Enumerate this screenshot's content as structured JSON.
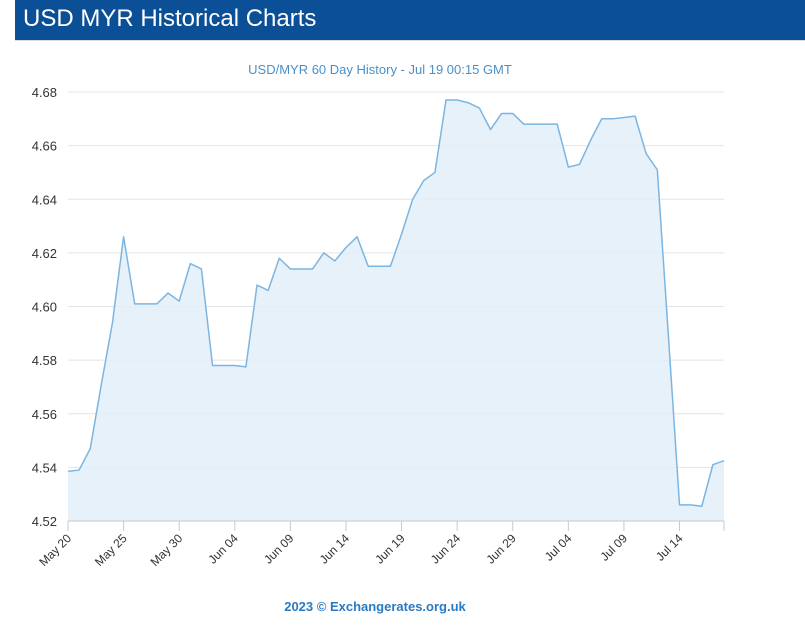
{
  "header": {
    "title": "USD MYR Historical Charts"
  },
  "chart_data": {
    "type": "area",
    "title": "USD/MYR 60 Day History - Jul 19 00:15 GMT",
    "xlabel": "",
    "ylabel": "",
    "ylim": [
      4.52,
      4.68
    ],
    "yticks": [
      "4.52",
      "4.54",
      "4.56",
      "4.58",
      "4.60",
      "4.62",
      "4.64",
      "4.66",
      "4.68"
    ],
    "xlim": [
      "2023-05-20",
      "2023-07-18"
    ],
    "xticks": [
      "May 20",
      "May 25",
      "May 30",
      "Jun 04",
      "Jun 09",
      "Jun 14",
      "Jun 19",
      "Jun 24",
      "Jun 29",
      "Jul 04",
      "Jul 09",
      "Jul 14"
    ],
    "grid": true,
    "colors": {
      "line": "#7cb5e0",
      "fill": "#e3eef9",
      "grid": "#e4e4e4"
    },
    "x": [
      "2023-05-20",
      "2023-05-21",
      "2023-05-22",
      "2023-05-23",
      "2023-05-24",
      "2023-05-25",
      "2023-05-26",
      "2023-05-27",
      "2023-05-28",
      "2023-05-29",
      "2023-05-30",
      "2023-05-31",
      "2023-06-01",
      "2023-06-02",
      "2023-06-03",
      "2023-06-04",
      "2023-06-05",
      "2023-06-06",
      "2023-06-07",
      "2023-06-08",
      "2023-06-09",
      "2023-06-10",
      "2023-06-11",
      "2023-06-12",
      "2023-06-13",
      "2023-06-14",
      "2023-06-15",
      "2023-06-16",
      "2023-06-17",
      "2023-06-18",
      "2023-06-19",
      "2023-06-20",
      "2023-06-21",
      "2023-06-22",
      "2023-06-23",
      "2023-06-24",
      "2023-06-25",
      "2023-06-26",
      "2023-06-27",
      "2023-06-28",
      "2023-06-29",
      "2023-06-30",
      "2023-07-01",
      "2023-07-02",
      "2023-07-03",
      "2023-07-04",
      "2023-07-05",
      "2023-07-06",
      "2023-07-07",
      "2023-07-08",
      "2023-07-09",
      "2023-07-10",
      "2023-07-11",
      "2023-07-12",
      "2023-07-13",
      "2023-07-14",
      "2023-07-15",
      "2023-07-16",
      "2023-07-17",
      "2023-07-18"
    ],
    "series": [
      {
        "values": [
          4.5385,
          4.539,
          4.547,
          4.571,
          4.594,
          4.626,
          4.601,
          4.601,
          4.601,
          4.605,
          4.602,
          4.616,
          4.614,
          4.578,
          4.578,
          4.578,
          4.5775,
          4.608,
          4.606,
          4.618,
          4.614,
          4.614,
          4.614,
          4.62,
          4.617,
          4.622,
          4.626,
          4.615,
          4.615,
          4.615,
          4.627,
          4.64,
          4.647,
          4.65,
          4.677,
          4.677,
          4.676,
          4.674,
          4.666,
          4.672,
          4.672,
          4.668,
          4.668,
          4.668,
          4.668,
          4.652,
          4.653,
          4.662,
          4.67,
          4.67,
          4.6705,
          4.671,
          4.657,
          4.651,
          4.589,
          4.526,
          4.526,
          4.5255,
          4.541,
          4.5425
        ]
      }
    ]
  },
  "footer": {
    "credit": "2023 © Exchangerates.org.uk"
  }
}
